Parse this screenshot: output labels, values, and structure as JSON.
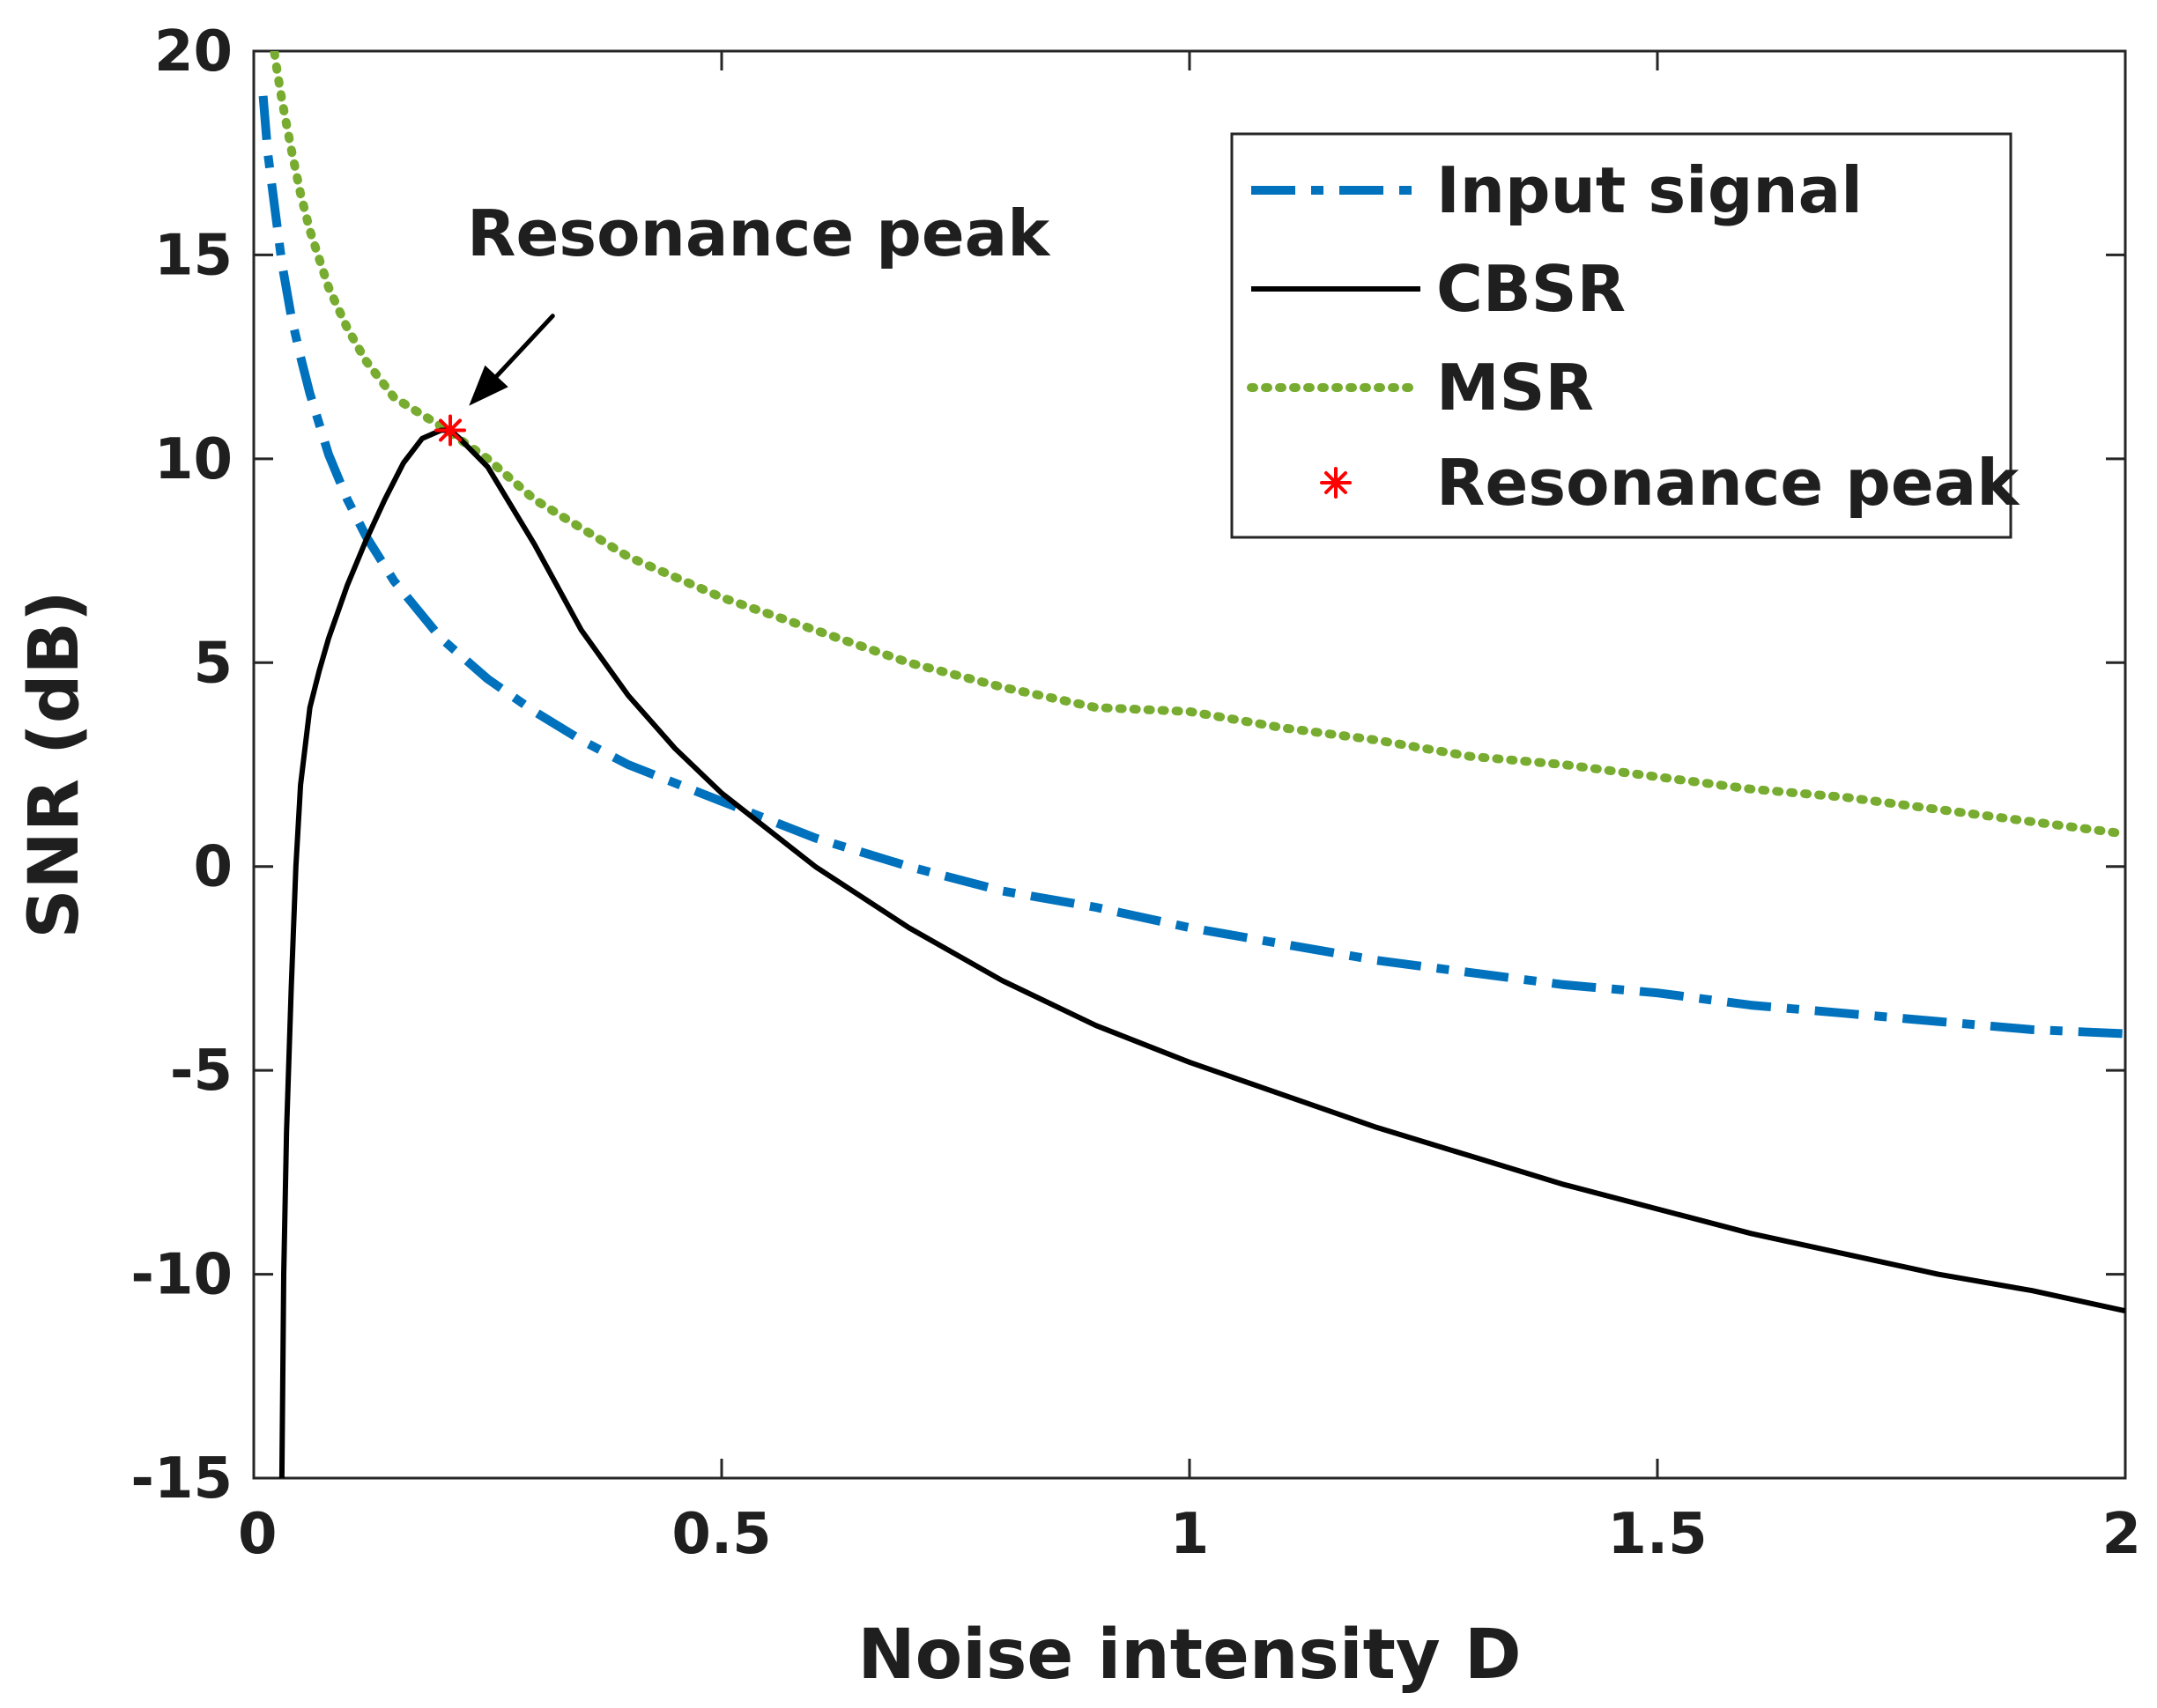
{
  "chart_data": {
    "type": "line",
    "title": "",
    "xlabel": "Noise intensity D",
    "ylabel": "SNR  (dB)",
    "xlim": [
      0,
      2
    ],
    "ylim": [
      -15,
      20
    ],
    "xticks": [
      0,
      0.5,
      1,
      1.5,
      2
    ],
    "xtick_labels": [
      "0",
      "0.5",
      "1",
      "1.5",
      "2"
    ],
    "yticks": [
      -15,
      -10,
      -5,
      0,
      5,
      10,
      15,
      20
    ],
    "ytick_labels": [
      "-15",
      "-10",
      "-5",
      "0",
      "5",
      "10",
      "15",
      "20"
    ],
    "grid": false,
    "legend_position": "top-right",
    "series": [
      {
        "name": "Input signal",
        "style": "dash-dot",
        "color": "#0072BD",
        "x": [
          0.01,
          0.015,
          0.02,
          0.03,
          0.04,
          0.05,
          0.06,
          0.08,
          0.1,
          0.12,
          0.15,
          0.2,
          0.25,
          0.3,
          0.35,
          0.4,
          0.5,
          0.6,
          0.7,
          0.8,
          0.9,
          1.0,
          1.1,
          1.2,
          1.3,
          1.4,
          1.5,
          1.6,
          1.7,
          1.8,
          1.9,
          2.0
        ],
        "values": [
          18.9,
          17.5,
          16.6,
          14.8,
          13.5,
          12.5,
          11.6,
          10.1,
          9.0,
          8.1,
          7.0,
          5.6,
          4.6,
          3.8,
          3.1,
          2.5,
          1.6,
          0.7,
          0.0,
          -0.6,
          -1.0,
          -1.5,
          -1.9,
          -2.3,
          -2.6,
          -2.9,
          -3.1,
          -3.4,
          -3.6,
          -3.8,
          -4.0,
          -4.1
        ]
      },
      {
        "name": "CBSR",
        "style": "solid",
        "color": "#000000",
        "x": [
          0.03,
          0.032,
          0.035,
          0.04,
          0.045,
          0.05,
          0.06,
          0.07,
          0.08,
          0.1,
          0.12,
          0.14,
          0.16,
          0.18,
          0.2,
          0.21,
          0.22,
          0.25,
          0.3,
          0.35,
          0.4,
          0.45,
          0.5,
          0.6,
          0.7,
          0.8,
          0.9,
          1.0,
          1.1,
          1.2,
          1.3,
          1.4,
          1.5,
          1.6,
          1.7,
          1.8,
          1.9,
          2.0
        ],
        "values": [
          -15.0,
          -10.0,
          -6.5,
          -3.0,
          0.0,
          2.0,
          3.9,
          4.8,
          5.6,
          6.9,
          8.0,
          9.0,
          9.9,
          10.5,
          10.7,
          10.7,
          10.5,
          9.8,
          7.9,
          5.8,
          4.2,
          2.9,
          1.8,
          0.0,
          -1.5,
          -2.8,
          -3.9,
          -4.8,
          -5.6,
          -6.4,
          -7.1,
          -7.8,
          -8.4,
          -9.0,
          -9.5,
          -10.0,
          -10.4,
          -10.9
        ]
      },
      {
        "name": "MSR",
        "style": "dotted",
        "color": "#77AC30",
        "x": [
          0.02,
          0.025,
          0.03,
          0.04,
          0.05,
          0.06,
          0.08,
          0.1,
          0.12,
          0.15,
          0.2,
          0.25,
          0.3,
          0.35,
          0.4,
          0.5,
          0.6,
          0.7,
          0.8,
          0.9,
          1.0,
          1.1,
          1.2,
          1.3,
          1.4,
          1.5,
          1.6,
          1.7,
          1.8,
          1.9,
          2.0
        ],
        "values": [
          20.3,
          19.5,
          18.8,
          17.6,
          16.5,
          15.6,
          14.2,
          13.2,
          12.4,
          11.5,
          10.8,
          10.0,
          9.0,
          8.3,
          7.6,
          6.6,
          5.8,
          5.0,
          4.4,
          3.9,
          3.8,
          3.4,
          3.1,
          2.7,
          2.5,
          2.2,
          1.9,
          1.7,
          1.4,
          1.1,
          0.8
        ]
      }
    ],
    "markers": [
      {
        "name": "Resonance peak",
        "style": "asterisk",
        "color": "#FF0000",
        "x": 0.21,
        "y": 10.7
      }
    ],
    "annotations": [
      {
        "text": "Resonance peak",
        "points_to": {
          "x": 0.23,
          "y": 11.3
        }
      }
    ]
  }
}
